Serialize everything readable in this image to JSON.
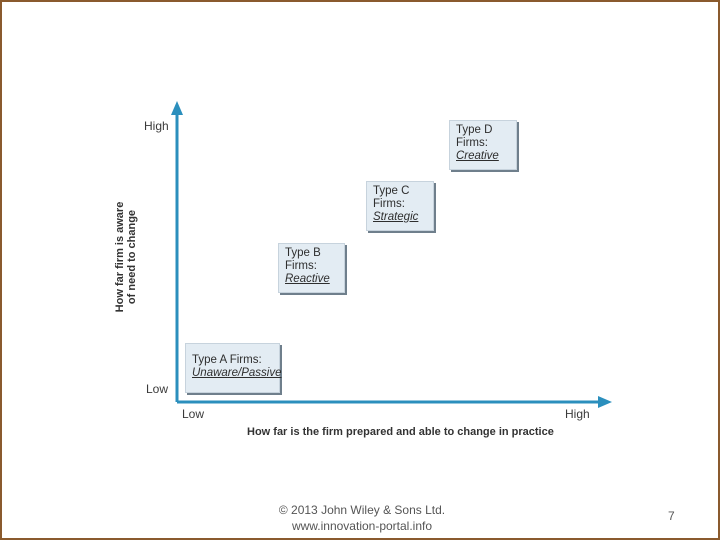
{
  "diagram": {
    "y_axis": {
      "title_line1": "How far firm is aware",
      "title_line2": "of need to change",
      "high_label": "High",
      "low_label": "Low"
    },
    "x_axis": {
      "title": "How far is the firm prepared and able to change in practice",
      "low_label": "Low",
      "high_label": "High"
    },
    "boxes": [
      {
        "title": "Type A Firms:",
        "kind": "Unaware/Passive"
      },
      {
        "title_line1": "Type B",
        "title_line2": "Firms:",
        "kind": "Reactive"
      },
      {
        "title_line1": "Type C",
        "title_line2": "Firms:",
        "kind": "Strategic"
      },
      {
        "title_line1": "Type D",
        "title_line2": "Firms:",
        "kind": "Creative"
      }
    ],
    "colors": {
      "axis": "#2b8fbd",
      "box_fill": "#e3ecf3",
      "box_shadow": "#6f7f8c",
      "frame": "#8a5a2e"
    }
  },
  "footer": {
    "copyright": "© 2013 John Wiley & Sons Ltd.",
    "website": "www.innovation-portal.info",
    "page_number": "7"
  }
}
